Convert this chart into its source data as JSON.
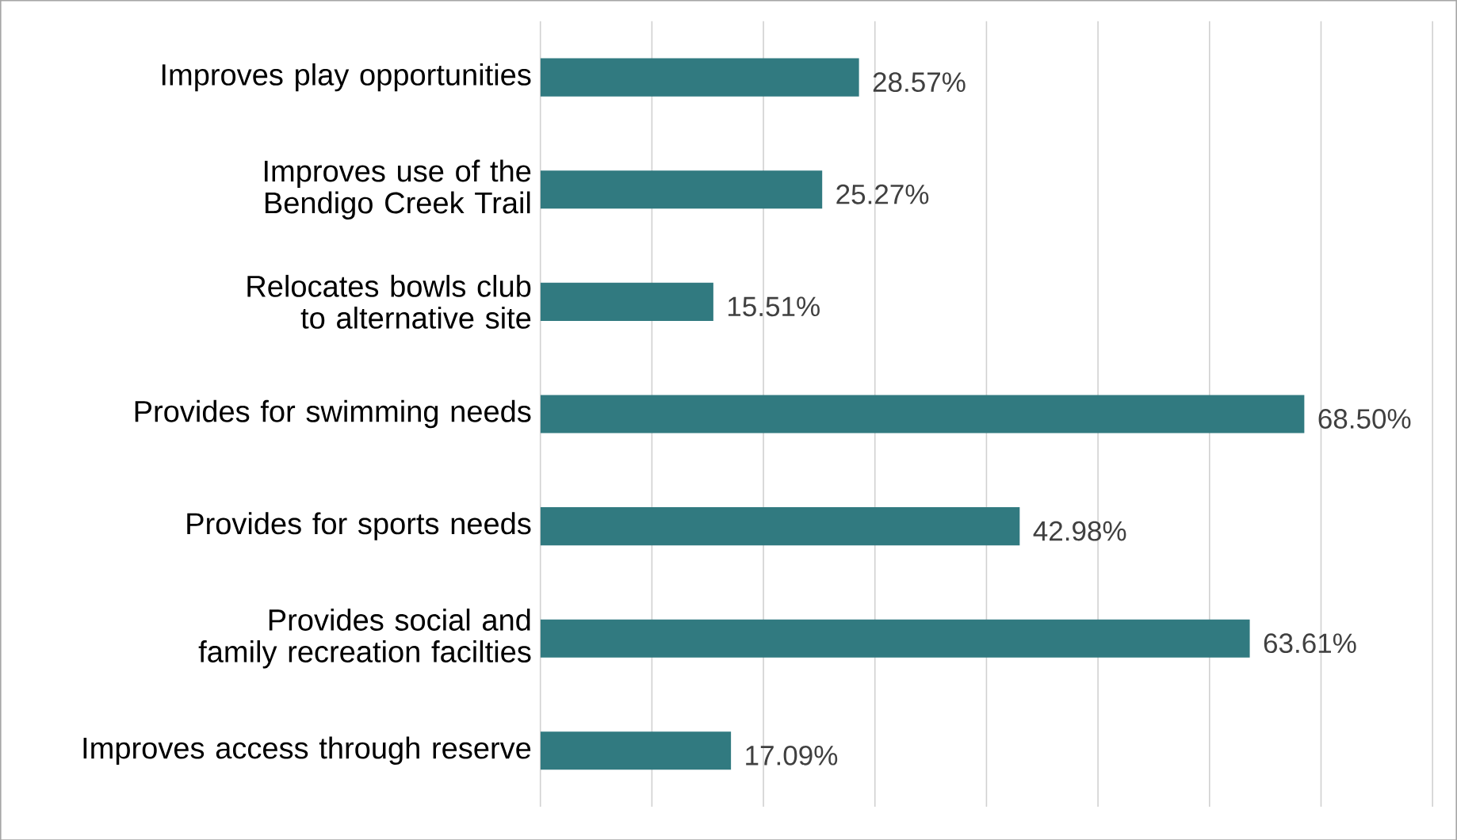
{
  "chart_data": {
    "type": "bar",
    "orientation": "horizontal",
    "categories": [
      "Improves play opportunities",
      "Improves use of the Bendigo Creek Trail",
      "Relocates bowls club to alternative site",
      "Provides for swimming needs",
      "Provides for sports needs",
      "Provides social and family recreation facilties",
      "Improves access through reserve"
    ],
    "values": [
      28.57,
      25.27,
      15.51,
      68.5,
      42.98,
      63.61,
      17.09
    ],
    "value_labels": [
      "28.57%",
      "25.27%",
      "15.51%",
      "68.50%",
      "42.98%",
      "63.61%",
      "17.09%"
    ],
    "color": "#317a80",
    "xlim": [
      0,
      80
    ],
    "xticks": [
      {
        "value": 0,
        "label": null
      },
      {
        "value": 10,
        "label": null
      },
      {
        "value": 20,
        "label": null
      },
      {
        "value": 30,
        "label": null
      },
      {
        "value": 40,
        "label": null
      },
      {
        "value": 50,
        "label": null
      },
      {
        "value": 60,
        "label": null
      },
      {
        "value": 70,
        "label": null
      },
      {
        "value": 80,
        "label": null
      }
    ],
    "grid": "x",
    "tick_labels": "y"
  }
}
